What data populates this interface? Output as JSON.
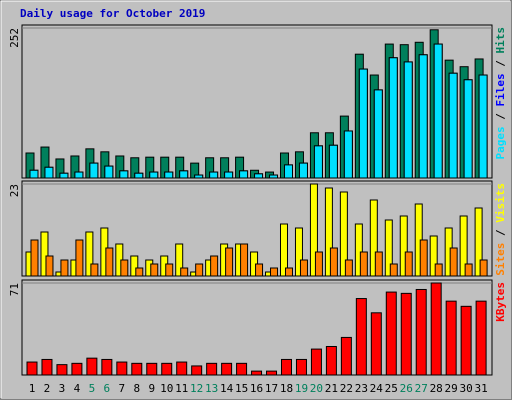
{
  "chart_data": {
    "type": "bar",
    "title": "Daily usage for October 2019",
    "categories": [
      "1",
      "2",
      "3",
      "4",
      "5",
      "6",
      "7",
      "8",
      "9",
      "10",
      "11",
      "12",
      "13",
      "14",
      "15",
      "16",
      "17",
      "18",
      "19",
      "20",
      "21",
      "22",
      "23",
      "24",
      "25",
      "26",
      "27",
      "28",
      "29",
      "30",
      "31"
    ],
    "category_colors": [
      "#000000",
      "#000000",
      "#000000",
      "#000000",
      "#00805c",
      "#00805c",
      "#000000",
      "#000000",
      "#000000",
      "#000000",
      "#000000",
      "#00805c",
      "#00805c",
      "#000000",
      "#000000",
      "#000000",
      "#000000",
      "#000000",
      "#00805c",
      "#00805c",
      "#000000",
      "#000000",
      "#000000",
      "#000000",
      "#000000",
      "#00805c",
      "#00805c",
      "#000000",
      "#000000",
      "#000000",
      "#000000"
    ],
    "panels": [
      {
        "ylim": [
          0,
          252
        ],
        "yticks": [
          252
        ],
        "series": [
          {
            "name": "Hits",
            "color": "#00805c",
            "values": [
              42,
              52,
              32,
              37,
              49,
              44,
              37,
              34,
              35,
              35,
              35,
              25,
              34,
              34,
              35,
              13,
              10,
              42,
              44,
              76,
              76,
              104,
              208,
              173,
              225,
              224,
              228,
              249,
              198,
              187,
              200
            ]
          },
          {
            "name": "Files",
            "color": "#0000ff",
            "values": [
              13,
              18,
              8,
              10,
              25,
              20,
              12,
              8,
              10,
              10,
              12,
              5,
              10,
              10,
              12,
              7,
              5,
              22,
              25,
              54,
              55,
              79,
              183,
              148,
              202,
              195,
              207,
              225,
              176,
              165,
              173
            ]
          },
          {
            "name": "Pages",
            "color": "#00e0ff",
            "values": [
              13,
              18,
              8,
              10,
              25,
              20,
              12,
              8,
              10,
              10,
              12,
              5,
              10,
              10,
              12,
              7,
              5,
              22,
              25,
              54,
              55,
              79,
              183,
              148,
              202,
              195,
              207,
              225,
              176,
              165,
              173
            ]
          }
        ]
      },
      {
        "ylim": [
          0,
          23
        ],
        "yticks": [
          23
        ],
        "series": [
          {
            "name": "Visits",
            "color": "#ffff00",
            "values": [
              6,
              11,
              1,
              4,
              11,
              12,
              8,
              5,
              4,
              5,
              8,
              1,
              4,
              8,
              8,
              6,
              1,
              13,
              12,
              23,
              22,
              21,
              13,
              19,
              14,
              15,
              18,
              10,
              12,
              15,
              17
            ]
          },
          {
            "name": "Sites",
            "color": "#ff8000",
            "values": [
              9,
              5,
              4,
              9,
              3,
              7,
              4,
              2,
              3,
              3,
              2,
              3,
              5,
              7,
              8,
              3,
              2,
              2,
              4,
              6,
              7,
              4,
              6,
              6,
              3,
              6,
              9,
              3,
              7,
              3,
              4
            ]
          }
        ]
      },
      {
        "ylim": [
          0,
          71
        ],
        "yticks": [
          71
        ],
        "series": [
          {
            "name": "KBytes",
            "color": "#ff0000",
            "values": [
              10,
              12,
              8,
              9,
              13,
              12,
              10,
              9,
              9,
              9,
              10,
              7,
              9,
              9,
              9,
              3,
              3,
              12,
              12,
              20,
              22,
              29,
              59,
              48,
              64,
              63,
              66,
              71,
              57,
              53,
              57
            ]
          }
        ]
      }
    ]
  }
}
